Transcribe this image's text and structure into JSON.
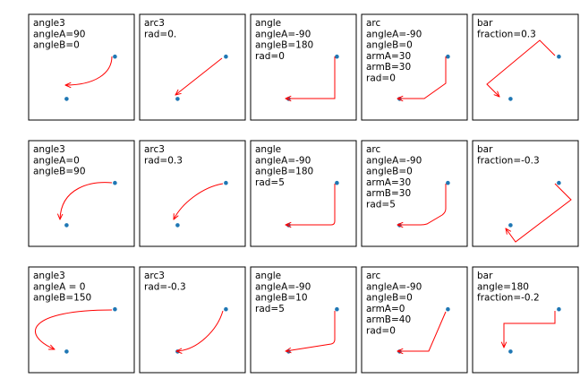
{
  "chart_data": [
    {
      "type": "scatter",
      "label_lines": [
        "angle3",
        "angleA=90",
        "angleB=0"
      ],
      "points": [
        [
          0.3,
          0.2
        ],
        [
          0.8,
          0.6
        ]
      ],
      "point_color": "#1f77b4",
      "arrow_color": "#ff0000"
    },
    {
      "type": "scatter",
      "label_lines": [
        "arc3",
        "rad=0."
      ],
      "points": [
        [
          0.3,
          0.2
        ],
        [
          0.8,
          0.6
        ]
      ],
      "point_color": "#1f77b4",
      "arrow_color": "#ff0000"
    },
    {
      "type": "scatter",
      "label_lines": [
        "angle",
        "angleA=-90",
        "angleB=180",
        "rad=0"
      ],
      "points": [
        [
          0.3,
          0.2
        ],
        [
          0.8,
          0.6
        ]
      ],
      "point_color": "#1f77b4",
      "arrow_color": "#ff0000"
    },
    {
      "type": "scatter",
      "label_lines": [
        "arc",
        "angleA=-90",
        "angleB=0",
        "armA=30",
        "armB=30",
        "rad=0"
      ],
      "points": [
        [
          0.3,
          0.2
        ],
        [
          0.8,
          0.6
        ]
      ],
      "point_color": "#1f77b4",
      "arrow_color": "#ff0000"
    },
    {
      "type": "scatter",
      "label_lines": [
        "bar",
        "fraction=0.3"
      ],
      "points": [
        [
          0.3,
          0.2
        ],
        [
          0.8,
          0.6
        ]
      ],
      "point_color": "#1f77b4",
      "arrow_color": "#ff0000"
    },
    {
      "type": "scatter",
      "label_lines": [
        "angle3",
        "angleA=0",
        "angleB=90"
      ],
      "points": [
        [
          0.3,
          0.2
        ],
        [
          0.8,
          0.6
        ]
      ],
      "point_color": "#1f77b4",
      "arrow_color": "#ff0000"
    },
    {
      "type": "scatter",
      "label_lines": [
        "arc3",
        "rad=0.3"
      ],
      "points": [
        [
          0.3,
          0.2
        ],
        [
          0.8,
          0.6
        ]
      ],
      "point_color": "#1f77b4",
      "arrow_color": "#ff0000"
    },
    {
      "type": "scatter",
      "label_lines": [
        "angle",
        "angleA=-90",
        "angleB=180",
        "rad=5"
      ],
      "points": [
        [
          0.3,
          0.2
        ],
        [
          0.8,
          0.6
        ]
      ],
      "point_color": "#1f77b4",
      "arrow_color": "#ff0000"
    },
    {
      "type": "scatter",
      "label_lines": [
        "arc",
        "angleA=-90",
        "angleB=0",
        "armA=30",
        "armB=30",
        "rad=5"
      ],
      "points": [
        [
          0.3,
          0.2
        ],
        [
          0.8,
          0.6
        ]
      ],
      "point_color": "#1f77b4",
      "arrow_color": "#ff0000"
    },
    {
      "type": "scatter",
      "label_lines": [
        "bar",
        "fraction=-0.3"
      ],
      "points": [
        [
          0.3,
          0.2
        ],
        [
          0.8,
          0.6
        ]
      ],
      "point_color": "#1f77b4",
      "arrow_color": "#ff0000"
    },
    {
      "type": "scatter",
      "label_lines": [
        "angle3",
        "angleA = 0",
        "angleB=150"
      ],
      "points": [
        [
          0.3,
          0.2
        ],
        [
          0.8,
          0.6
        ]
      ],
      "point_color": "#1f77b4",
      "arrow_color": "#ff0000"
    },
    {
      "type": "scatter",
      "label_lines": [
        "arc3",
        "rad=-0.3"
      ],
      "points": [
        [
          0.3,
          0.2
        ],
        [
          0.8,
          0.6
        ]
      ],
      "point_color": "#1f77b4",
      "arrow_color": "#ff0000"
    },
    {
      "type": "scatter",
      "label_lines": [
        "angle",
        "angleA=-90",
        "angleB=10",
        "rad=5"
      ],
      "points": [
        [
          0.3,
          0.2
        ],
        [
          0.8,
          0.6
        ]
      ],
      "point_color": "#1f77b4",
      "arrow_color": "#ff0000"
    },
    {
      "type": "scatter",
      "label_lines": [
        "arc",
        "angleA=-90",
        "angleB=0",
        "armA=0",
        "armB=40",
        "rad=0"
      ],
      "points": [
        [
          0.3,
          0.2
        ],
        [
          0.8,
          0.6
        ]
      ],
      "point_color": "#1f77b4",
      "arrow_color": "#ff0000"
    },
    {
      "type": "scatter",
      "label_lines": [
        "bar",
        "angle=180",
        "fraction=-0.2"
      ],
      "points": [
        [
          0.3,
          0.2
        ],
        [
          0.8,
          0.6
        ]
      ],
      "point_color": "#1f77b4",
      "arrow_color": "#ff0000"
    }
  ]
}
